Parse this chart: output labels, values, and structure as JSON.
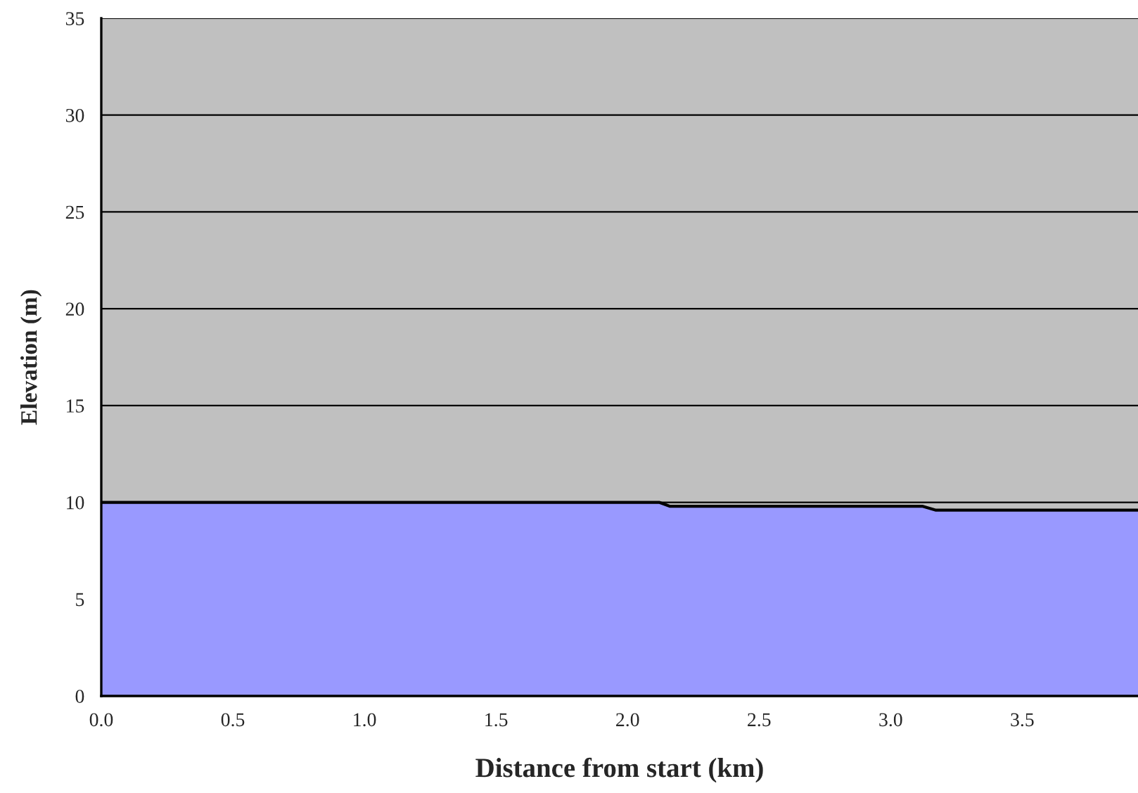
{
  "chart_data": {
    "type": "area",
    "xlabel": "Distance from start (km)",
    "ylabel": "Elevation (m)",
    "x": [
      0,
      2.12,
      2.16,
      3.12,
      3.17,
      3.94
    ],
    "series": [
      {
        "color": "#9999ff",
        "values": [
          10,
          10,
          9.8,
          9.8,
          9.6,
          9.6
        ]
      }
    ],
    "xlim": [
      0,
      3.94
    ],
    "xticks": [
      {
        "value": 0,
        "label": "0.0"
      },
      0.5,
      {
        "value": 1,
        "label": "1.0"
      },
      1.5,
      {
        "value": 2,
        "label": "2.0"
      },
      2.5,
      {
        "value": 3,
        "label": "3.0"
      },
      3.5
    ],
    "ylim": [
      0,
      35
    ],
    "yticks": [
      0,
      5,
      10,
      15,
      20,
      25,
      30,
      35
    ],
    "grid": "y",
    "legend": false
  }
}
